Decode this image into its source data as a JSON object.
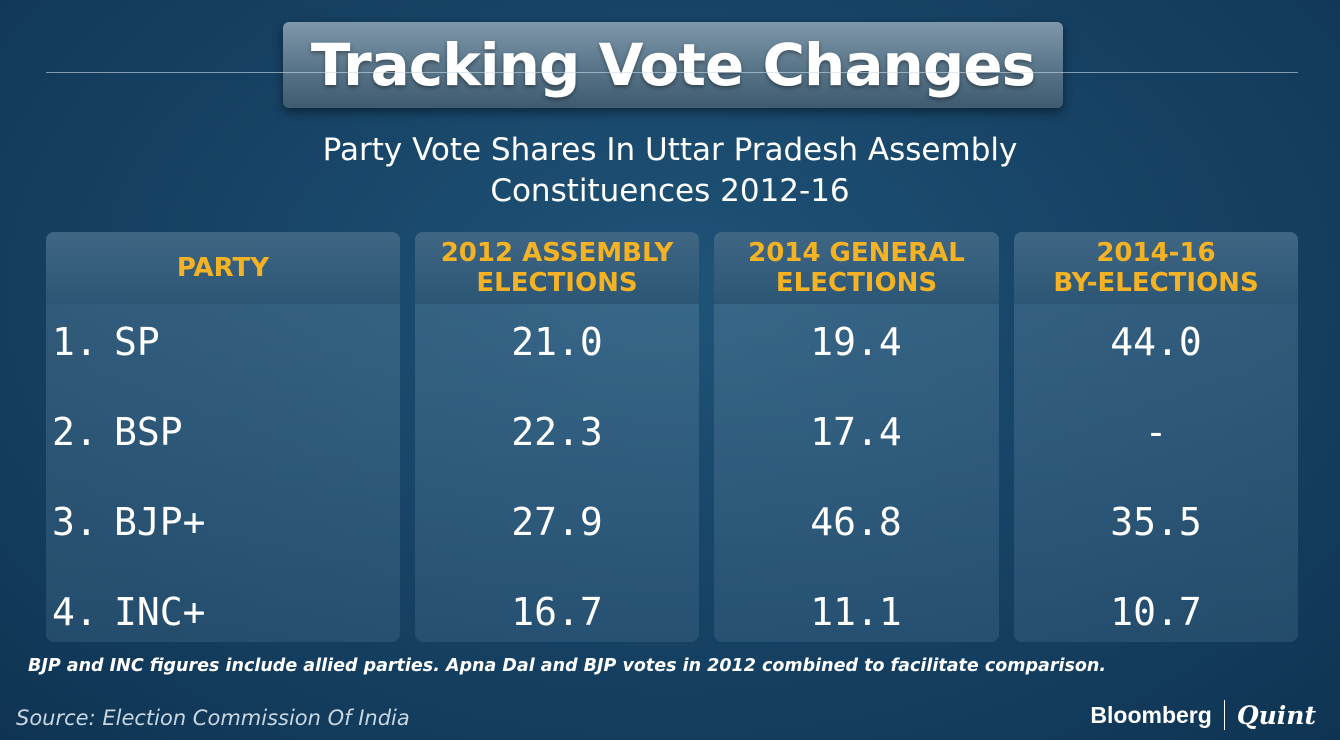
{
  "title": "Tracking Vote Changes",
  "subtitle_line1": "Party Vote Shares In Uttar Pradesh Assembly",
  "subtitle_line2": "Constituences 2012-16",
  "chart_data": {
    "type": "table",
    "columns": [
      "PARTY",
      "2012 ASSEMBLY\nELECTIONS",
      "2014 GENERAL\nELECTIONS",
      "2014-16\nBY-ELECTIONS"
    ],
    "rows": [
      {
        "num": "1.",
        "party": "SP",
        "values": [
          "21.0",
          "19.4",
          "44.0"
        ]
      },
      {
        "num": "2.",
        "party": "BSP",
        "values": [
          "22.3",
          "17.4",
          "-"
        ]
      },
      {
        "num": "3.",
        "party": "BJP+",
        "values": [
          "27.9",
          "46.8",
          "35.5"
        ]
      },
      {
        "num": "4.",
        "party": "INC+",
        "values": [
          "16.7",
          "11.1",
          "10.7"
        ]
      }
    ]
  },
  "note": "BJP and INC figures include allied parties. Apna Dal and BJP votes in 2012 combined to facilitate comparison.",
  "source": "Source: Election Commission Of India",
  "brand_left": "Bloomberg",
  "brand_right": "Quint",
  "colors": {
    "header_text": "#f5b324",
    "background": "#174467"
  }
}
